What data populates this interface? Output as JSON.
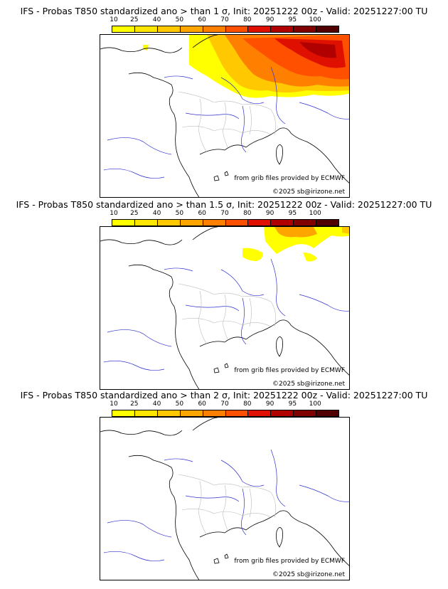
{
  "colors": [
    "#ffff00",
    "#ffe600",
    "#ffc800",
    "#ffa500",
    "#ff8000",
    "#ff5000",
    "#e01000",
    "#b00000",
    "#800000",
    "#500000"
  ],
  "colorbar_ticks": [
    "10",
    "25",
    "40",
    "50",
    "60",
    "70",
    "80",
    "90",
    "95",
    "100"
  ],
  "panels": [
    {
      "title": "IFS - Probas T850  standardized ano > than 1 σ, Init: 20251222 00z - Valid: 20251227:00 TU",
      "credit_source": "from grib files provided by ECMWF",
      "credit_copyright": "©2025 sb@irizone.net",
      "probability_coverage": "high"
    },
    {
      "title": "IFS - Probas T850  standardized ano > than 1.5 σ, Init: 20251222 00z - Valid: 20251227:00 TU",
      "credit_source": "from grib files provided by ECMWF",
      "credit_copyright": "©2025 sb@irizone.net",
      "probability_coverage": "low"
    },
    {
      "title": "IFS - Probas T850  standardized ano > than 2 σ, Init: 20251222 00z - Valid: 20251227:00 TU",
      "credit_source": "from grib files provided by ECMWF",
      "credit_copyright": "©2025 sb@irizone.net",
      "probability_coverage": "none"
    }
  ]
}
